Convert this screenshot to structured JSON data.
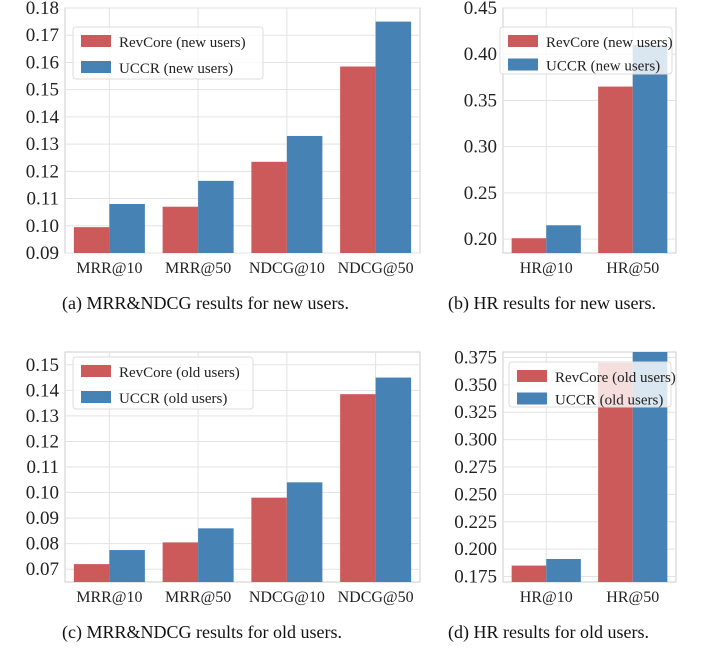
{
  "colors": {
    "revcore": "#cd5a5a",
    "uccr": "#4682b4",
    "grid": "#e3e3e3",
    "frame": "#cccccc"
  },
  "chart_data": [
    {
      "type": "bar",
      "categories": [
        "MRR@10",
        "MRR@50",
        "NDCG@10",
        "NDCG@50"
      ],
      "series": [
        {
          "name": "RevCore (new users)",
          "values": [
            0.0995,
            0.107,
            0.1235,
            0.1585
          ]
        },
        {
          "name": "UCCR (new users)",
          "values": [
            0.108,
            0.1165,
            0.133,
            0.175
          ]
        }
      ],
      "ylim": [
        0.09,
        0.18
      ],
      "yticks": [
        "0.09",
        "0.10",
        "0.11",
        "0.12",
        "0.13",
        "0.14",
        "0.15",
        "0.16",
        "0.17",
        "0.18"
      ],
      "legend": "top-left",
      "grid": true,
      "caption": "(a)  MRR&NDCG results for new users."
    },
    {
      "type": "bar",
      "categories": [
        "HR@10",
        "HR@50"
      ],
      "series": [
        {
          "name": "RevCore (new users)",
          "values": [
            0.201,
            0.365
          ]
        },
        {
          "name": "UCCR (new users)",
          "values": [
            0.215,
            0.41
          ]
        }
      ],
      "ylim": [
        0.185,
        0.45
      ],
      "yticks": [
        "0.20",
        "0.25",
        "0.30",
        "0.35",
        "0.40",
        "0.45"
      ],
      "legend": "top-left",
      "grid": true,
      "caption": "(b)  HR results for new users."
    },
    {
      "type": "bar",
      "categories": [
        "MRR@10",
        "MRR@50",
        "NDCG@10",
        "NDCG@50"
      ],
      "series": [
        {
          "name": "RevCore (old users)",
          "values": [
            0.072,
            0.0805,
            0.098,
            0.1385
          ]
        },
        {
          "name": "UCCR (old users)",
          "values": [
            0.0775,
            0.086,
            0.104,
            0.145
          ]
        }
      ],
      "ylim": [
        0.065,
        0.155
      ],
      "yticks": [
        "0.07",
        "0.08",
        "0.09",
        "0.10",
        "0.11",
        "0.12",
        "0.13",
        "0.14",
        "0.15"
      ],
      "legend": "top-left",
      "grid": true,
      "caption": "(c)  MRR&NDCG results for old users."
    },
    {
      "type": "bar",
      "categories": [
        "HR@10",
        "HR@50"
      ],
      "series": [
        {
          "name": "RevCore (old users)",
          "values": [
            0.185,
            0.37
          ]
        },
        {
          "name": "UCCR (old users)",
          "values": [
            0.191,
            0.38
          ]
        }
      ],
      "ylim": [
        0.17,
        0.38
      ],
      "yticks": [
        "0.175",
        "0.200",
        "0.225",
        "0.250",
        "0.275",
        "0.300",
        "0.325",
        "0.350",
        "0.375"
      ],
      "legend": "top-left",
      "grid": true,
      "caption": "(d)  HR results for old users."
    }
  ]
}
